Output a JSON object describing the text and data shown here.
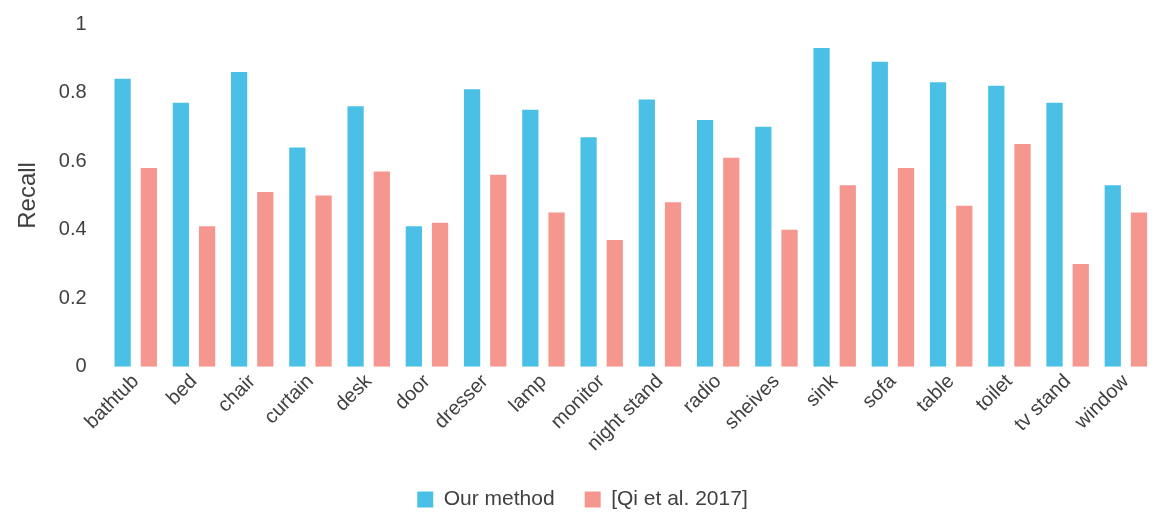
{
  "chart_data": {
    "type": "bar",
    "ylabel": "Recall",
    "categories": [
      "bathtub",
      "bed",
      "chair",
      "curtain",
      "desk",
      "door",
      "dresser",
      "lamp",
      "monitor",
      "night stand",
      "radio",
      "sheives",
      "sink",
      "sofa",
      "table",
      "toilet",
      "tv stand",
      "window"
    ],
    "series": [
      {
        "name": "Our method",
        "color": "#4bc0e6",
        "values": [
          0.84,
          0.77,
          0.86,
          0.64,
          0.76,
          0.41,
          0.81,
          0.75,
          0.67,
          0.78,
          0.72,
          0.7,
          0.93,
          0.89,
          0.83,
          0.82,
          0.77,
          0.53
        ]
      },
      {
        "name": "[Qi et al. 2017]",
        "color": "#f5978f",
        "values": [
          0.58,
          0.41,
          0.51,
          0.5,
          0.57,
          0.42,
          0.56,
          0.45,
          0.37,
          0.48,
          0.61,
          0.4,
          0.53,
          0.58,
          0.47,
          0.65,
          0.3,
          0.45
        ]
      }
    ],
    "ylim": [
      0,
      1
    ],
    "yticks": [
      0,
      0.2,
      0.4,
      0.6,
      0.8,
      1
    ],
    "grid": false,
    "legend": "bottom"
  }
}
